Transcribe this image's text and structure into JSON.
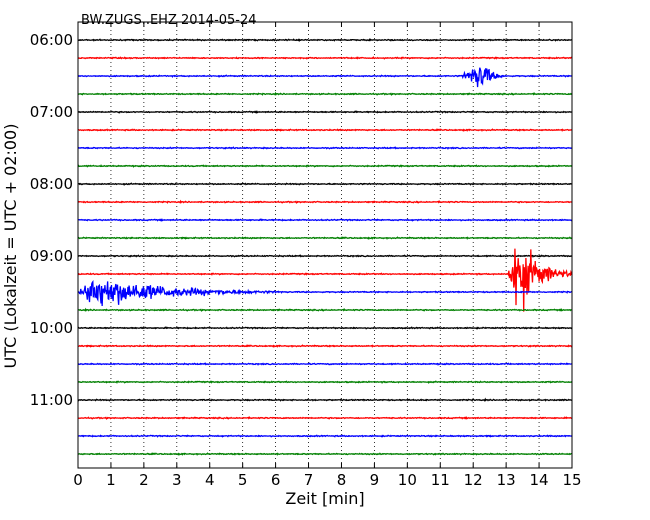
{
  "chart_data": {
    "type": "line",
    "title": "BW.ZUGS..EHZ 2014-05-24",
    "xlabel": "Zeit  [min]",
    "ylabel": "UTC (Lokalzeit = UTC + 02:00)",
    "xlim": [
      0,
      15
    ],
    "x_ticks": [
      "0",
      "1",
      "2",
      "3",
      "4",
      "5",
      "6",
      "7",
      "8",
      "9",
      "10",
      "11",
      "12",
      "13",
      "14",
      "15"
    ],
    "y_ticks": [
      "06:00",
      "07:00",
      "08:00",
      "09:00",
      "10:00",
      "11:00"
    ],
    "grid": "vertical dotted",
    "trace_colors": [
      "#000000",
      "#ff0000",
      "#0000ff",
      "#008000"
    ],
    "traces": [
      {
        "label": "06:00",
        "color": "#000000",
        "events": []
      },
      {
        "label": "06:15",
        "color": "#ff0000",
        "events": []
      },
      {
        "label": "06:30",
        "color": "#0000ff",
        "events": [
          {
            "start": 11.6,
            "peak": 12.3,
            "end": 13.0,
            "amp": 2.5
          }
        ]
      },
      {
        "label": "06:45",
        "color": "#008000",
        "events": []
      },
      {
        "label": "07:00",
        "color": "#000000",
        "events": []
      },
      {
        "label": "07:15",
        "color": "#ff0000",
        "events": []
      },
      {
        "label": "07:30",
        "color": "#0000ff",
        "events": []
      },
      {
        "label": "07:45",
        "color": "#008000",
        "events": []
      },
      {
        "label": "08:00",
        "color": "#000000",
        "events": []
      },
      {
        "label": "08:15",
        "color": "#ff0000",
        "events": []
      },
      {
        "label": "08:30",
        "color": "#0000ff",
        "events": []
      },
      {
        "label": "08:45",
        "color": "#008000",
        "events": []
      },
      {
        "label": "09:00",
        "color": "#000000",
        "events": []
      },
      {
        "label": "09:15",
        "color": "#ff0000",
        "events": [
          {
            "start": 13.05,
            "peak": 13.3,
            "end": 15.0,
            "amp": 7.0
          }
        ]
      },
      {
        "label": "09:30",
        "color": "#0000ff",
        "events": [
          {
            "start": 0.0,
            "peak": 0.5,
            "end": 6.2,
            "amp": 3.0
          }
        ]
      },
      {
        "label": "09:45",
        "color": "#008000",
        "events": []
      },
      {
        "label": "10:00",
        "color": "#000000",
        "events": []
      },
      {
        "label": "10:15",
        "color": "#ff0000",
        "events": []
      },
      {
        "label": "10:30",
        "color": "#0000ff",
        "events": []
      },
      {
        "label": "10:45",
        "color": "#008000",
        "events": []
      },
      {
        "label": "11:00",
        "color": "#000000",
        "events": []
      },
      {
        "label": "11:15",
        "color": "#ff0000",
        "events": []
      },
      {
        "label": "11:30",
        "color": "#0000ff",
        "events": []
      },
      {
        "label": "11:45",
        "color": "#008000",
        "events": []
      }
    ]
  }
}
